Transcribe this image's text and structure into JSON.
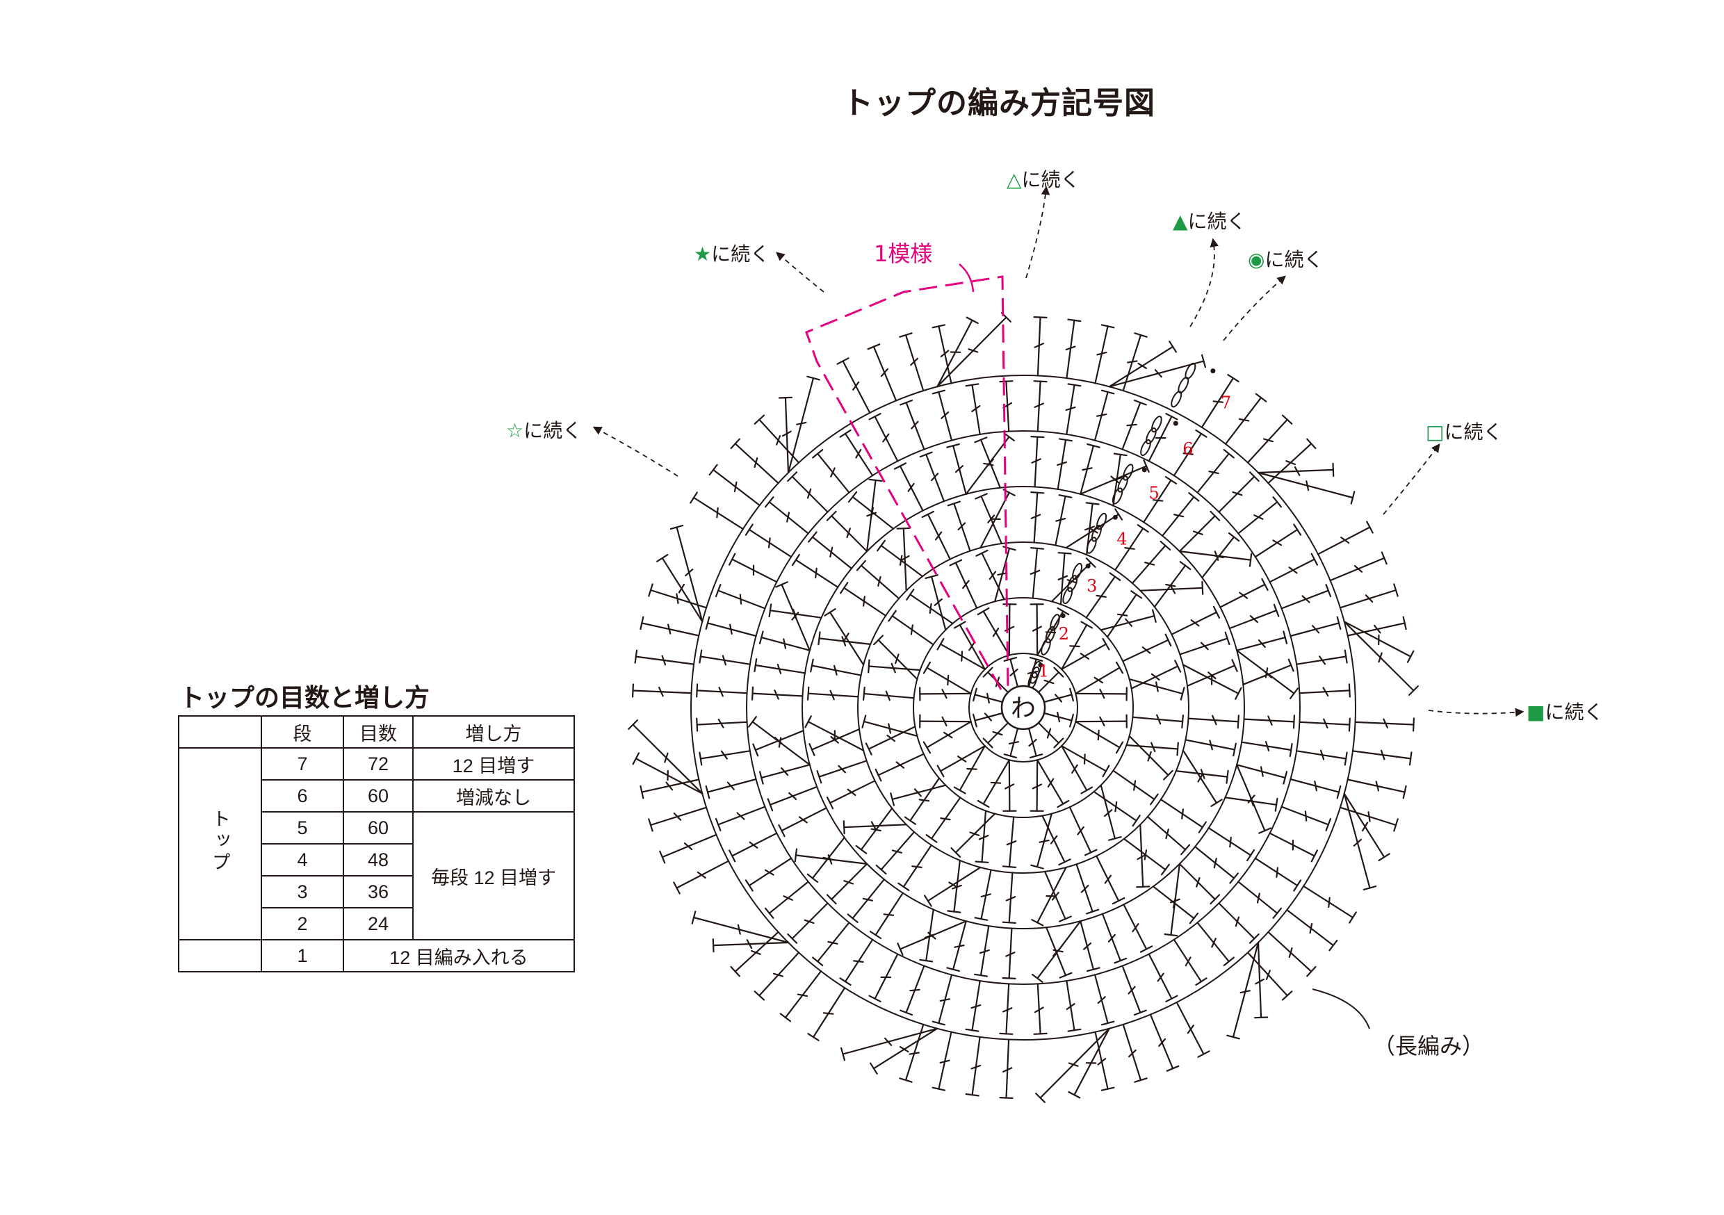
{
  "title": "トップの編み方記号図",
  "table_title": "トップの目数と増し方",
  "center_label": "わ",
  "pattern_label": "1模様",
  "stitch_note": "（長編み）",
  "row_numbers": [
    "1",
    "2",
    "3",
    "4",
    "5",
    "6",
    "7"
  ],
  "continuations": [
    {
      "symbol": "△",
      "text": "に続く",
      "color": "#1e9a46"
    },
    {
      "symbol": "▲",
      "text": "に続く",
      "color": "#1e9a46"
    },
    {
      "symbol": "◉",
      "text": "に続く",
      "color": "#1e9a46"
    },
    {
      "symbol": "★",
      "text": "に続く",
      "color": "#1e9a46"
    },
    {
      "symbol": "☆",
      "text": "に続く",
      "color": "#1e9a46"
    },
    {
      "symbol": "□",
      "text": "に続く",
      "color": "#1e9a46"
    },
    {
      "symbol": "■",
      "text": "に続く",
      "color": "#1e9a46"
    }
  ],
  "table": {
    "headers": [
      "段",
      "目数",
      "増し方"
    ],
    "section": "トップ",
    "rows": [
      {
        "round": "7",
        "count": "72",
        "method": "12 目増す"
      },
      {
        "round": "6",
        "count": "60",
        "method": "増減なし"
      },
      {
        "round": "5",
        "count": "60",
        "method": "毎段 12 目増す"
      },
      {
        "round": "4",
        "count": "48",
        "method": ""
      },
      {
        "round": "3",
        "count": "36",
        "method": ""
      },
      {
        "round": "2",
        "count": "24",
        "method": ""
      },
      {
        "round": "1",
        "count": "",
        "method": "12 目編み入れる"
      }
    ]
  },
  "colors": {
    "line": "#231815",
    "accent": "#e4007f",
    "row_number": "#e60012",
    "symbol": "#1e9a46"
  },
  "diagram": {
    "stitches_per_round": [
      12,
      24,
      36,
      48,
      60,
      60,
      72
    ]
  }
}
